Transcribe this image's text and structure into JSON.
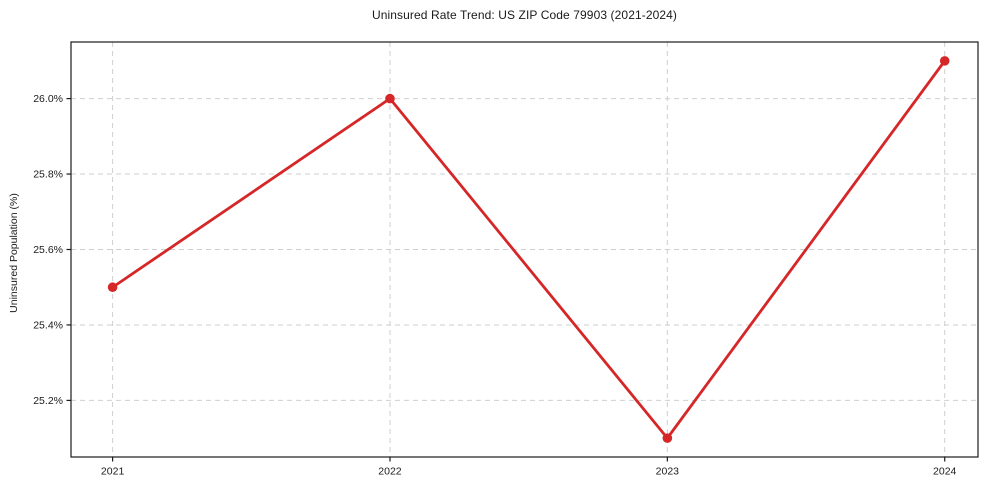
{
  "chart_data": {
    "type": "line",
    "title": "Uninsured Rate Trend: US ZIP Code 79903 (2021-2024)",
    "xlabel": "",
    "ylabel": "Uninsured Population (%)",
    "x": [
      2021,
      2022,
      2023,
      2024
    ],
    "values": [
      25.5,
      26.0,
      25.1,
      26.1
    ],
    "x_tick_labels": [
      "2021",
      "2022",
      "2023",
      "2024"
    ],
    "y_ticks": [
      25.2,
      25.4,
      25.6,
      25.8,
      26.0
    ],
    "y_tick_labels": [
      "25.2%",
      "25.4%",
      "25.6%",
      "25.8%",
      "26.0%"
    ],
    "xlim": [
      2020.85,
      2024.12
    ],
    "ylim": [
      25.05,
      26.15
    ],
    "grid": true,
    "grid_style": "dashed",
    "legend": "none",
    "colors": {
      "line": "#d62728",
      "marker": "#d62728",
      "grid": "#cfcfcf",
      "axis": "#1a1a1a",
      "background": "#ffffff"
    }
  }
}
